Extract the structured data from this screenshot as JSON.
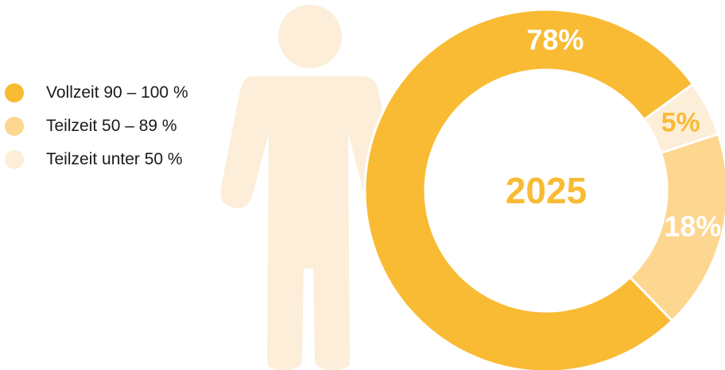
{
  "chart_data": {
    "type": "pie",
    "variant": "donut",
    "center_label": "2025",
    "series": [
      {
        "name": "Vollzeit 90 – 100 %",
        "value": 78,
        "label": "78%",
        "color": "#f9bb33"
      },
      {
        "name": "Teilzeit 50 – 89 %",
        "value": 18,
        "label": "18%",
        "color": "#fdd68f"
      },
      {
        "name": "Teilzeit unter 50 %",
        "value": 5,
        "label": "5%",
        "color": "#fdeed9"
      }
    ],
    "legend_position": "left",
    "label_colors": {
      "on_dark": "#ffffff",
      "on_light": "#f9bb33"
    }
  },
  "colors": {
    "figure": "#fdeed9",
    "center_text": "#f9bb33",
    "separator": "#ffffff"
  },
  "icons": {
    "figure": "person-silhouette-icon"
  }
}
